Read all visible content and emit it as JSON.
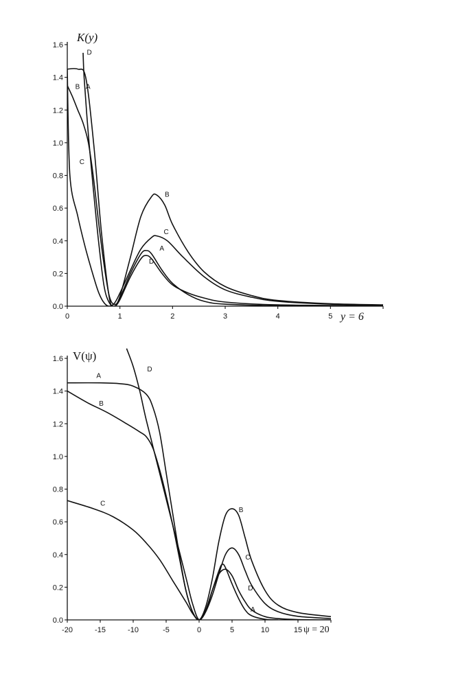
{
  "chart_data": [
    {
      "type": "line",
      "ylabel": "K(y)",
      "xlabel": "y = 6",
      "xlim": [
        0,
        6
      ],
      "ylim": [
        0,
        1.6
      ],
      "xticks": [
        "0",
        "1",
        "2",
        "3",
        "4",
        "5"
      ],
      "yticks": [
        "0.0",
        "0.2",
        "0.4",
        "0.6",
        "0.8",
        "1.0",
        "1.2",
        "1.4",
        "1.6"
      ],
      "series": [
        {
          "name": "A",
          "points": [
            [
              0,
              1.45
            ],
            [
              0.2,
              1.45
            ],
            [
              0.35,
              1.4
            ],
            [
              0.5,
              1.0
            ],
            [
              0.65,
              0.45
            ],
            [
              0.8,
              0.05
            ],
            [
              0.9,
              0.0
            ],
            [
              1.0,
              0.05
            ],
            [
              1.2,
              0.2
            ],
            [
              1.4,
              0.32
            ],
            [
              1.5,
              0.34
            ],
            [
              1.6,
              0.32
            ],
            [
              1.8,
              0.22
            ],
            [
              2.0,
              0.14
            ],
            [
              2.3,
              0.07
            ],
            [
              2.6,
              0.03
            ],
            [
              3.0,
              0.012
            ],
            [
              4,
              0.003
            ],
            [
              6,
              0
            ]
          ]
        },
        {
          "name": "B",
          "points": [
            [
              0,
              1.35
            ],
            [
              0.1,
              1.28
            ],
            [
              0.2,
              1.2
            ],
            [
              0.3,
              1.12
            ],
            [
              0.4,
              1.0
            ],
            [
              0.5,
              0.78
            ],
            [
              0.6,
              0.5
            ],
            [
              0.7,
              0.25
            ],
            [
              0.8,
              0.06
            ],
            [
              0.9,
              0.01
            ],
            [
              1.0,
              0.06
            ],
            [
              1.2,
              0.3
            ],
            [
              1.4,
              0.55
            ],
            [
              1.6,
              0.67
            ],
            [
              1.7,
              0.68
            ],
            [
              1.85,
              0.62
            ],
            [
              2.0,
              0.5
            ],
            [
              2.3,
              0.33
            ],
            [
              2.6,
              0.21
            ],
            [
              3.0,
              0.12
            ],
            [
              3.5,
              0.065
            ],
            [
              4,
              0.035
            ],
            [
              5,
              0.015
            ],
            [
              6,
              0.008
            ]
          ]
        },
        {
          "name": "C",
          "points": [
            [
              0,
              1.45
            ],
            [
              0.05,
              0.8
            ],
            [
              0.2,
              0.55
            ],
            [
              0.35,
              0.35
            ],
            [
              0.5,
              0.18
            ],
            [
              0.6,
              0.08
            ],
            [
              0.7,
              0.02
            ],
            [
              0.8,
              0.0
            ],
            [
              0.9,
              0.02
            ],
            [
              1.0,
              0.08
            ],
            [
              1.2,
              0.22
            ],
            [
              1.4,
              0.35
            ],
            [
              1.6,
              0.42
            ],
            [
              1.7,
              0.43
            ],
            [
              1.9,
              0.4
            ],
            [
              2.2,
              0.3
            ],
            [
              2.6,
              0.18
            ],
            [
              3.0,
              0.1
            ],
            [
              3.5,
              0.055
            ],
            [
              4,
              0.03
            ],
            [
              5,
              0.012
            ],
            [
              6,
              0.006
            ]
          ]
        },
        {
          "name": "D",
          "points": [
            [
              0.3,
              1.55
            ],
            [
              0.32,
              1.4
            ],
            [
              0.4,
              1.05
            ],
            [
              0.5,
              0.7
            ],
            [
              0.6,
              0.38
            ],
            [
              0.7,
              0.12
            ],
            [
              0.8,
              0.02
            ],
            [
              0.9,
              0.0
            ],
            [
              1.0,
              0.04
            ],
            [
              1.2,
              0.18
            ],
            [
              1.4,
              0.29
            ],
            [
              1.5,
              0.31
            ],
            [
              1.6,
              0.29
            ],
            [
              1.8,
              0.2
            ],
            [
              2.0,
              0.13
            ],
            [
              2.3,
              0.08
            ],
            [
              2.6,
              0.05
            ],
            [
              3.0,
              0.025
            ],
            [
              4,
              0.008
            ],
            [
              6,
              0.002
            ]
          ]
        }
      ]
    },
    {
      "type": "line",
      "ylabel": "V(ψ)",
      "xlabel": "ψ = 20",
      "xlim": [
        -20,
        20
      ],
      "ylim": [
        0,
        1.6
      ],
      "xticks": [
        "-20",
        "-15",
        "-10",
        "-5",
        "0",
        "5",
        "10",
        "15"
      ],
      "yticks": [
        "0.0",
        "0.2",
        "0.4",
        "0.6",
        "0.8",
        "1.0",
        "1.2",
        "1.4",
        "1.6"
      ],
      "series": [
        {
          "name": "A",
          "points": [
            [
              -20,
              1.45
            ],
            [
              -15,
              1.45
            ],
            [
              -12,
              1.445
            ],
            [
              -10,
              1.43
            ],
            [
              -8,
              1.38
            ],
            [
              -7,
              1.3
            ],
            [
              -6,
              1.15
            ],
            [
              -5,
              0.9
            ],
            [
              -4,
              0.65
            ],
            [
              -3,
              0.4
            ],
            [
              -2,
              0.18
            ],
            [
              -1,
              0.05
            ],
            [
              0,
              0.0
            ],
            [
              1,
              0.05
            ],
            [
              2,
              0.18
            ],
            [
              3,
              0.3
            ],
            [
              3.5,
              0.34
            ],
            [
              4,
              0.32
            ],
            [
              5,
              0.22
            ],
            [
              6,
              0.13
            ],
            [
              7,
              0.06
            ],
            [
              8,
              0.025
            ],
            [
              10,
              0.004
            ],
            [
              12,
              0
            ]
          ]
        },
        {
          "name": "B",
          "points": [
            [
              -20,
              1.4
            ],
            [
              -17,
              1.33
            ],
            [
              -14,
              1.27
            ],
            [
              -11,
              1.2
            ],
            [
              -9,
              1.15
            ],
            [
              -8,
              1.12
            ],
            [
              -7,
              1.05
            ],
            [
              -6,
              0.92
            ],
            [
              -5,
              0.76
            ],
            [
              -4,
              0.58
            ],
            [
              -3,
              0.38
            ],
            [
              -2,
              0.18
            ],
            [
              -1,
              0.05
            ],
            [
              0,
              0.0
            ],
            [
              1,
              0.08
            ],
            [
              2,
              0.25
            ],
            [
              3,
              0.48
            ],
            [
              4,
              0.64
            ],
            [
              5,
              0.68
            ],
            [
              6,
              0.64
            ],
            [
              7,
              0.5
            ],
            [
              8,
              0.36
            ],
            [
              10,
              0.18
            ],
            [
              12,
              0.09
            ],
            [
              15,
              0.045
            ],
            [
              20,
              0.02
            ]
          ]
        },
        {
          "name": "C",
          "points": [
            [
              -20,
              0.73
            ],
            [
              -16,
              0.68
            ],
            [
              -13,
              0.63
            ],
            [
              -10,
              0.55
            ],
            [
              -8,
              0.47
            ],
            [
              -6,
              0.37
            ],
            [
              -4,
              0.24
            ],
            [
              -2,
              0.11
            ],
            [
              -1,
              0.04
            ],
            [
              0,
              0.0
            ],
            [
              1,
              0.05
            ],
            [
              2,
              0.15
            ],
            [
              3,
              0.28
            ],
            [
              4,
              0.4
            ],
            [
              5,
              0.44
            ],
            [
              6,
              0.4
            ],
            [
              7,
              0.3
            ],
            [
              8,
              0.21
            ],
            [
              10,
              0.1
            ],
            [
              12,
              0.05
            ],
            [
              15,
              0.022
            ],
            [
              20,
              0.008
            ]
          ]
        },
        {
          "name": "D",
          "points": [
            [
              -11,
              1.66
            ],
            [
              -10,
              1.55
            ],
            [
              -9,
              1.4
            ],
            [
              -8,
              1.22
            ],
            [
              -6,
              0.9
            ],
            [
              -4,
              0.58
            ],
            [
              -2,
              0.26
            ],
            [
              -1,
              0.1
            ],
            [
              0,
              0.0
            ],
            [
              1,
              0.06
            ],
            [
              2,
              0.18
            ],
            [
              3,
              0.28
            ],
            [
              4,
              0.31
            ],
            [
              5,
              0.27
            ],
            [
              6,
              0.18
            ],
            [
              7,
              0.11
            ],
            [
              8,
              0.06
            ],
            [
              10,
              0.02
            ],
            [
              12,
              0.008
            ],
            [
              15,
              0.002
            ],
            [
              20,
              0
            ]
          ]
        }
      ]
    }
  ]
}
